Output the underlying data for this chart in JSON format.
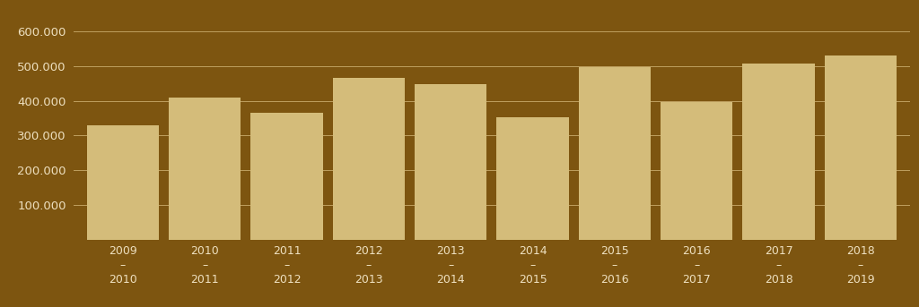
{
  "categories": [
    "2009\n–\n2010",
    "2010\n–\n2011",
    "2011\n–\n2012",
    "2012\n–\n2013",
    "2013\n–\n2014",
    "2014\n–\n2015",
    "2015\n–\n2016",
    "2016\n–\n2017",
    "2017\n–\n2018",
    "2018\n–\n2019"
  ],
  "values": [
    330000,
    410000,
    365000,
    465000,
    448000,
    352000,
    497000,
    397000,
    508000,
    530000
  ],
  "bar_color": "#D4BC7A",
  "background_color": "#7D5510",
  "grid_color": "#BFA060",
  "text_color": "#EEE0C0",
  "ylim": [
    0,
    620000
  ],
  "yticks": [
    100000,
    200000,
    300000,
    400000,
    500000,
    600000
  ],
  "ytick_labels": [
    "100.000",
    "200.000",
    "300.000",
    "400.000",
    "500.000",
    "600.000"
  ]
}
